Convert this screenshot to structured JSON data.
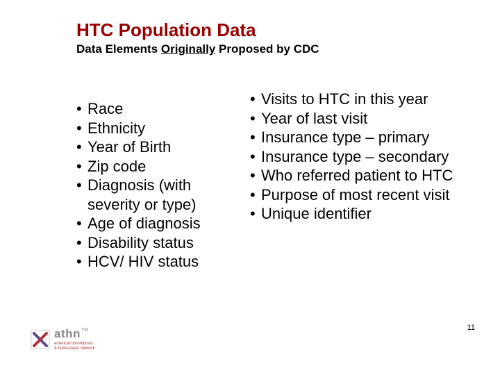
{
  "title": "HTC Population Data",
  "subtitle_pre": "Data Elements ",
  "subtitle_underlined": "Originally",
  "subtitle_post": " Proposed by CDC",
  "left_items": [
    "Race",
    "Ethnicity",
    "Year of Birth",
    "Zip code",
    "Diagnosis (with severity or type)",
    "Age of diagnosis",
    "Disability status",
    "HCV/ HIV status"
  ],
  "right_items": [
    "Visits to HTC in this year",
    "Year of last visit",
    "Insurance type – primary",
    "Insurance type – secondary",
    "Who referred patient to HTC",
    "Purpose of most recent visit",
    "Unique identifier"
  ],
  "page_number": "11",
  "logo": {
    "word": "athn",
    "tm": "TM",
    "tagline1": "american thrombosis",
    "tagline2": "& hemostasis network",
    "mark_colors": {
      "bg": "#ffffff",
      "border": "#cccccc",
      "x1": "#5a4a8a",
      "x2": "#b03040"
    }
  },
  "colors": {
    "title": "#990000",
    "text": "#000000",
    "bullet": "#000000"
  }
}
